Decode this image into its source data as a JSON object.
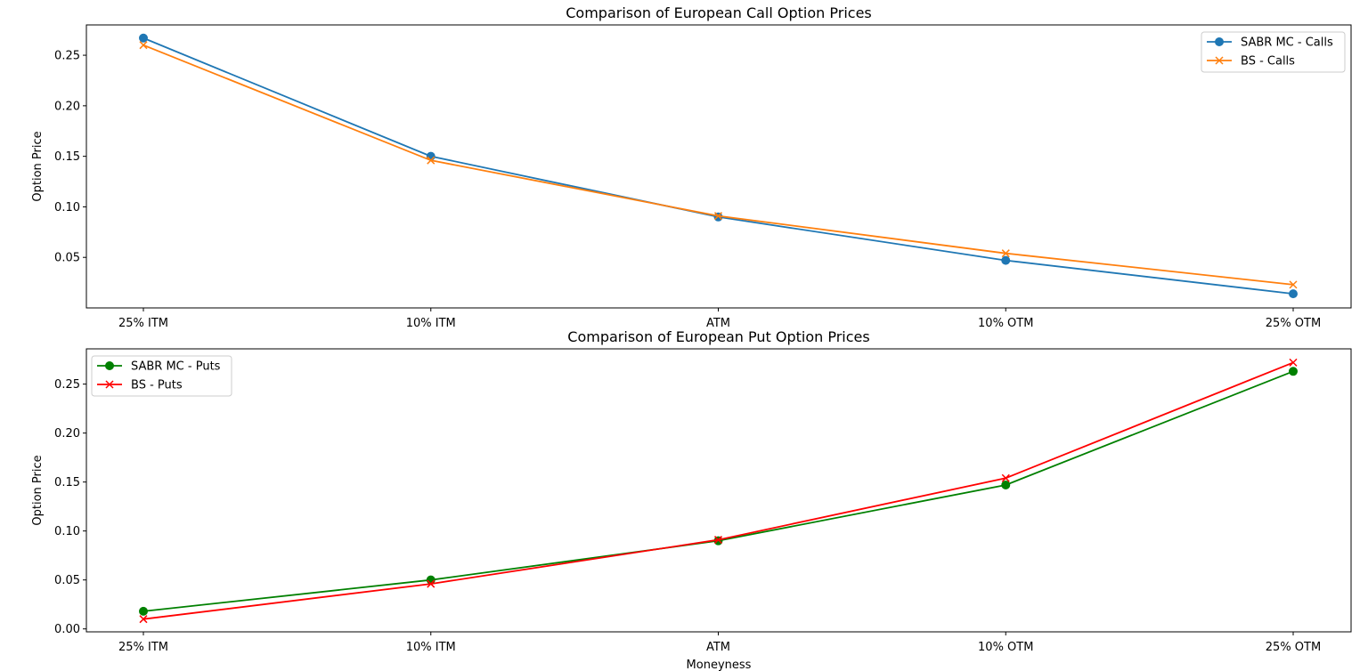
{
  "chart_data": [
    {
      "type": "line",
      "title": "Comparison of European Call Option Prices",
      "xlabel": "",
      "ylabel": "Option Price",
      "categories": [
        "25% ITM",
        "10% ITM",
        "ATM",
        "10% OTM",
        "25% OTM"
      ],
      "yticks": [
        "0.05",
        "0.10",
        "0.15",
        "0.20",
        "0.25"
      ],
      "ylim": [
        0.0,
        0.28
      ],
      "grid": false,
      "legend_position": "top-right",
      "series": [
        {
          "name": "SABR MC - Calls",
          "values": [
            0.267,
            0.15,
            0.09,
            0.047,
            0.014
          ],
          "color": "#1f77b4",
          "marker": "circle"
        },
        {
          "name": "BS - Calls",
          "values": [
            0.26,
            0.146,
            0.091,
            0.054,
            0.023
          ],
          "color": "#ff7f0e",
          "marker": "x"
        }
      ]
    },
    {
      "type": "line",
      "title": "Comparison of European Put Option Prices",
      "xlabel": "Moneyness",
      "ylabel": "Option Price",
      "categories": [
        "25% ITM",
        "10% ITM",
        "ATM",
        "10% OTM",
        "25% OTM"
      ],
      "yticks": [
        "0.00",
        "0.05",
        "0.10",
        "0.15",
        "0.20",
        "0.25"
      ],
      "ylim": [
        -0.003,
        0.286
      ],
      "grid": false,
      "legend_position": "top-left",
      "series": [
        {
          "name": "SABR MC - Puts",
          "values": [
            0.018,
            0.05,
            0.09,
            0.147,
            0.263
          ],
          "color": "#008000",
          "marker": "circle"
        },
        {
          "name": "BS - Puts",
          "values": [
            0.01,
            0.046,
            0.091,
            0.154,
            0.272
          ],
          "color": "#ff0000",
          "marker": "x"
        }
      ]
    }
  ]
}
